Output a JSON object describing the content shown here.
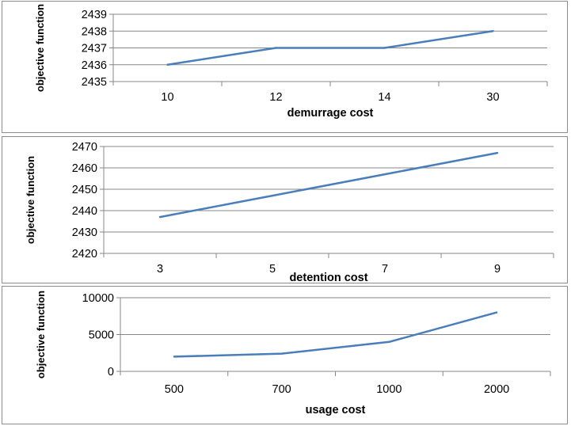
{
  "chart_data": [
    {
      "type": "line",
      "categories": [
        "10",
        "12",
        "14",
        "30"
      ],
      "values": [
        2436,
        2437,
        2437,
        2438
      ],
      "ylim": [
        2435,
        2439
      ],
      "yticks": [
        2435,
        2436,
        2437,
        2438,
        2439
      ],
      "xlabel": "demurrage cost",
      "ylabel": "objective function",
      "grid": true,
      "line_color": "#4a7ebb"
    },
    {
      "type": "line",
      "categories": [
        "3",
        "5",
        "7",
        "9"
      ],
      "values": [
        2437,
        2447,
        2457,
        2467
      ],
      "ylim": [
        2420,
        2470
      ],
      "yticks": [
        2420,
        2430,
        2440,
        2450,
        2460,
        2470
      ],
      "xlabel": "detention cost",
      "ylabel": "objective function",
      "grid": true,
      "line_color": "#4a7ebb"
    },
    {
      "type": "line",
      "categories": [
        "500",
        "700",
        "1000",
        "2000"
      ],
      "values": [
        2000,
        2400,
        4000,
        8000
      ],
      "ylim": [
        0,
        10000
      ],
      "yticks": [
        0,
        5000,
        10000
      ],
      "xlabel": "usage cost",
      "ylabel": "objective function",
      "grid": true,
      "line_color": "#4a7ebb"
    }
  ]
}
